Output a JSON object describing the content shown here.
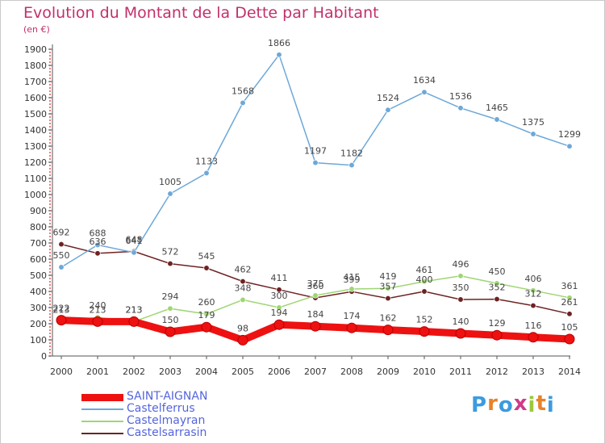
{
  "title": "Evolution du Montant de la Dette par Habitant",
  "subtitle": "(en €)",
  "logo": {
    "letters": [
      "P",
      "r",
      "o",
      "x",
      "i",
      "t",
      "i"
    ],
    "colors": [
      "#3b9be0",
      "#e8822a",
      "#3b9be0",
      "#d03a8a",
      "#9bc83c",
      "#e8822a",
      "#3b9be0"
    ]
  },
  "chart_data": {
    "type": "line",
    "x": [
      "2000",
      "2001",
      "2002",
      "2003",
      "2004",
      "2005",
      "2006",
      "2007",
      "2008",
      "2009",
      "2010",
      "2011",
      "2012",
      "2013",
      "2014"
    ],
    "ylim": [
      0,
      1900
    ],
    "yticks": [
      0,
      100,
      200,
      300,
      400,
      500,
      600,
      700,
      800,
      900,
      1000,
      1100,
      1200,
      1300,
      1400,
      1500,
      1600,
      1700,
      1800,
      1900
    ],
    "grid": false,
    "legend": "bottom-left",
    "series": [
      {
        "name": "SAINT-AIGNAN",
        "color": "#ee1111",
        "values": [
          222,
          213,
          213,
          150,
          179,
          98,
          194,
          184,
          174,
          162,
          152,
          140,
          129,
          116,
          105
        ]
      },
      {
        "name": "Castelferrus",
        "color": "#6da8d8",
        "values": [
          550,
          688,
          641,
          1005,
          1133,
          1568,
          1866,
          1197,
          1182,
          1524,
          1634,
          1536,
          1465,
          1375,
          1299
        ]
      },
      {
        "name": "Castelmayran",
        "color": "#9ed672",
        "values": [
          213,
          240,
          213,
          294,
          260,
          348,
          300,
          375,
          415,
          419,
          461,
          496,
          450,
          406,
          361
        ]
      },
      {
        "name": "Castelsarrasin",
        "color": "#6e2222",
        "values": [
          692,
          636,
          648,
          572,
          545,
          462,
          411,
          360,
          399,
          357,
          400,
          350,
          352,
          312,
          261
        ]
      }
    ],
    "labels": [
      {
        "series": 0,
        "text": [
          "222",
          "213",
          "213",
          "150",
          "179",
          "98",
          "194",
          "184",
          "174",
          "162",
          "152",
          "140",
          "129",
          "116",
          "105"
        ]
      },
      {
        "series": 1,
        "text": [
          "550",
          "688",
          "641",
          "1005",
          "1133",
          "1568",
          "1866",
          "1197",
          "1182",
          "1524",
          "1634",
          "1536",
          "1465",
          "1375",
          "1299"
        ]
      },
      {
        "series": 2,
        "text": [
          "213",
          "240",
          "213",
          "294",
          "260",
          "348",
          "300",
          "375",
          "415",
          "419",
          "461",
          "496",
          "450",
          "406",
          "361"
        ]
      },
      {
        "series": 3,
        "text": [
          "692",
          "636",
          "648",
          "572",
          "545",
          "462",
          "411",
          "360",
          "399",
          "357",
          "400",
          "350",
          "352",
          "312",
          "261"
        ]
      }
    ]
  }
}
